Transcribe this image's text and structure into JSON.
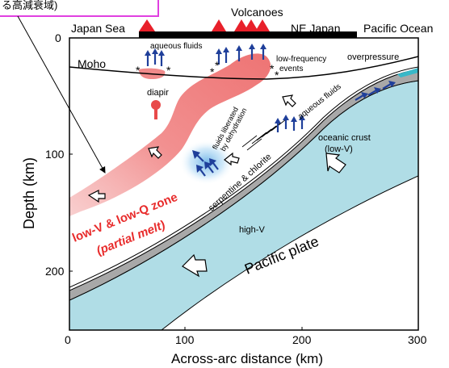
{
  "callout": {
    "text": "る高減衰域)",
    "border_color": "#e040e0"
  },
  "top": {
    "volcanoes_label": "Volcanoes",
    "japan_sea": "Japan Sea",
    "ne_japan": "NE Japan",
    "pacific_ocean": "Pacific Ocean"
  },
  "axes": {
    "xlabel": "Across-arc distance (km)",
    "ylabel": "Depth (km)",
    "x_ticks": [
      "0",
      "100",
      "200",
      "300"
    ],
    "y_ticks": [
      "0",
      "100",
      "200"
    ]
  },
  "labels": {
    "moho": "Moho",
    "aqueous_fluids_top": "aqueous fluids",
    "low_frequency_1": "low-frequency",
    "low_frequency_2": "events",
    "overpressure": "overpressure",
    "diapir": "diapir",
    "fluids_1": "fluids liberated",
    "fluids_2": "by dehydration",
    "aqueous_fluids_slab": "aqueous fluids",
    "oceanic_crust_1": "oceanic crust",
    "oceanic_crust_2": "(low-V)",
    "serpentine": "serpentine & chlorite",
    "high_v": "high-V",
    "pacific_plate": "Pacific plate",
    "melt_1": "low-V & low-Q zone",
    "melt_2": "(partial melt)",
    "asterisk": "*"
  },
  "colors": {
    "slab": "#b0dde6",
    "crust": "#a8a8a8",
    "melt": "#f08a8a",
    "volcano": "#e8202a",
    "arrow_blue": "#1f3f9a",
    "melt_text": "#e82c2c",
    "fluid_glow": "#4aa0e0"
  },
  "icons": {
    "volcano": "triangle",
    "fluid_arrow": "arrow-up",
    "flow_arrow": "hollow-arrow"
  }
}
